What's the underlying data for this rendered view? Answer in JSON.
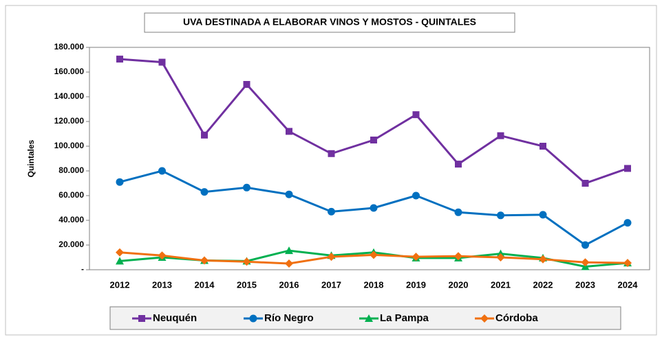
{
  "chart_data": {
    "type": "line",
    "title": "UVA DESTINADA A ELABORAR VINOS Y MOSTOS - QUINTALES",
    "y_label": "Quintales",
    "categories": [
      "2012",
      "2013",
      "2014",
      "2015",
      "2016",
      "2017",
      "2018",
      "2019",
      "2020",
      "2021",
      "2022",
      "2023",
      "2024"
    ],
    "ylim": [
      0,
      180000
    ],
    "yticks": [
      {
        "value": 0,
        "label": "-"
      },
      {
        "value": 20000,
        "label": "20.000"
      },
      {
        "value": 40000,
        "label": "40.000"
      },
      {
        "value": 60000,
        "label": "60.000"
      },
      {
        "value": 80000,
        "label": "80.000"
      },
      {
        "value": 100000,
        "label": "100.000"
      },
      {
        "value": 120000,
        "label": "120.000"
      },
      {
        "value": 140000,
        "label": "140.000"
      },
      {
        "value": 160000,
        "label": "160.000"
      },
      {
        "value": 180000,
        "label": "180.000"
      }
    ],
    "grid": false,
    "legend": "bottom",
    "series": [
      {
        "name": "Neuquén",
        "color": "#7030a0",
        "marker": "square",
        "values": [
          170500,
          168000,
          109000,
          150000,
          112000,
          94000,
          105000,
          125500,
          85500,
          108500,
          100000,
          70000,
          82000
        ]
      },
      {
        "name": "Río Negro",
        "color": "#0070c0",
        "marker": "circle",
        "values": [
          71000,
          80000,
          63000,
          66500,
          61000,
          47000,
          50000,
          60000,
          46500,
          44000,
          44500,
          20000,
          38000
        ]
      },
      {
        "name": "La Pampa",
        "color": "#00b050",
        "marker": "triangle",
        "values": [
          7000,
          10000,
          7500,
          7000,
          15500,
          11500,
          14000,
          9500,
          9500,
          13000,
          9500,
          2500,
          5500
        ]
      },
      {
        "name": "Córdoba",
        "color": "#f07010",
        "marker": "diamond",
        "values": [
          14000,
          11500,
          7500,
          6500,
          5000,
          10500,
          12000,
          10500,
          11000,
          10000,
          8500,
          6000,
          5500
        ]
      }
    ]
  }
}
